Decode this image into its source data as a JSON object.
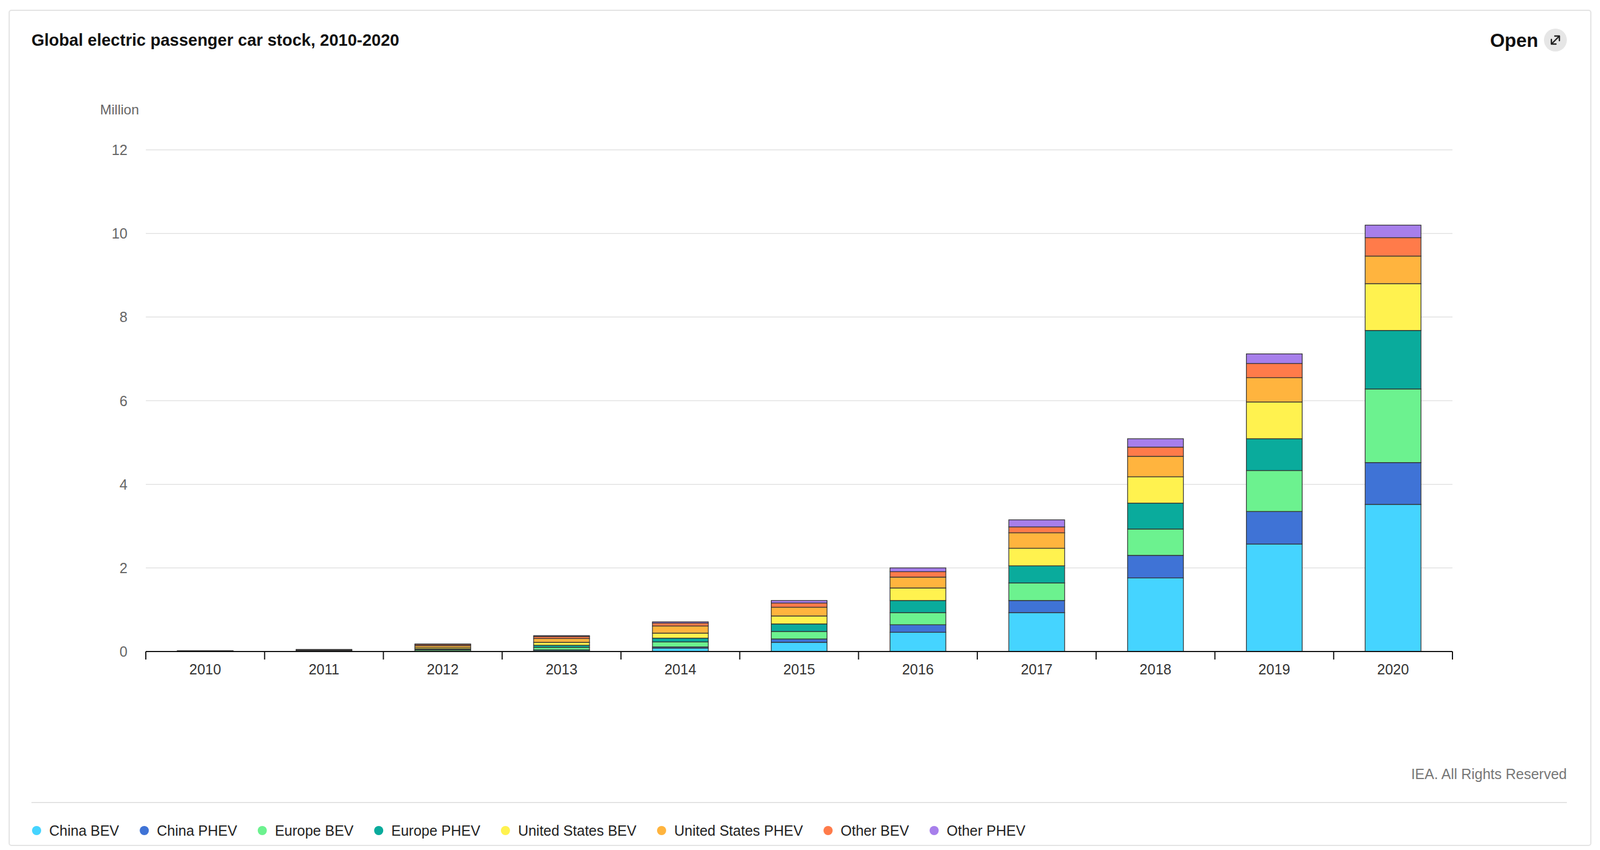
{
  "chart_data": {
    "type": "bar",
    "title": "Global electric passenger car stock, 2010-2020",
    "button": "Open",
    "y_label": "Million",
    "source": "IEA. All Rights Reserved",
    "stacked": true,
    "grid": true,
    "legend": "bottom",
    "categories": [
      "2010",
      "2011",
      "2012",
      "2013",
      "2014",
      "2015",
      "2016",
      "2017",
      "2018",
      "2019",
      "2020"
    ],
    "ylim": [
      0,
      12
    ],
    "yticks": [
      0,
      2,
      4,
      6,
      8,
      10,
      12
    ],
    "series": [
      {
        "name": "China BEV",
        "color": "#45d4ff",
        "values": [
          0,
          0.01,
          0.01,
          0.03,
          0.08,
          0.22,
          0.46,
          0.93,
          1.76,
          2.57,
          3.52
        ]
      },
      {
        "name": "China PHEV",
        "color": "#3f73d6",
        "values": [
          0,
          0,
          0,
          0.01,
          0.03,
          0.08,
          0.18,
          0.29,
          0.54,
          0.78,
          1.0
        ]
      },
      {
        "name": "Europe BEV",
        "color": "#6cf28f",
        "values": [
          0.01,
          0.01,
          0.03,
          0.06,
          0.12,
          0.18,
          0.29,
          0.42,
          0.63,
          0.98,
          1.76
        ]
      },
      {
        "name": "Europe PHEV",
        "color": "#0aab9c",
        "values": [
          0,
          0,
          0.02,
          0.05,
          0.09,
          0.18,
          0.29,
          0.41,
          0.62,
          0.76,
          1.4
        ]
      },
      {
        "name": "United States BEV",
        "color": "#fff24f",
        "values": [
          0,
          0.01,
          0.03,
          0.07,
          0.12,
          0.19,
          0.3,
          0.42,
          0.63,
          0.88,
          1.12
        ]
      },
      {
        "name": "United States PHEV",
        "color": "#ffb43e",
        "values": [
          0,
          0.01,
          0.05,
          0.09,
          0.17,
          0.21,
          0.26,
          0.37,
          0.49,
          0.58,
          0.66
        ]
      },
      {
        "name": "Other BEV",
        "color": "#ff7b4a",
        "values": [
          0.01,
          0.01,
          0.03,
          0.05,
          0.07,
          0.1,
          0.13,
          0.14,
          0.22,
          0.34,
          0.44
        ]
      },
      {
        "name": "Other PHEV",
        "color": "#a77feb",
        "values": [
          0,
          0,
          0.01,
          0.02,
          0.03,
          0.06,
          0.09,
          0.17,
          0.2,
          0.23,
          0.3
        ]
      }
    ]
  }
}
